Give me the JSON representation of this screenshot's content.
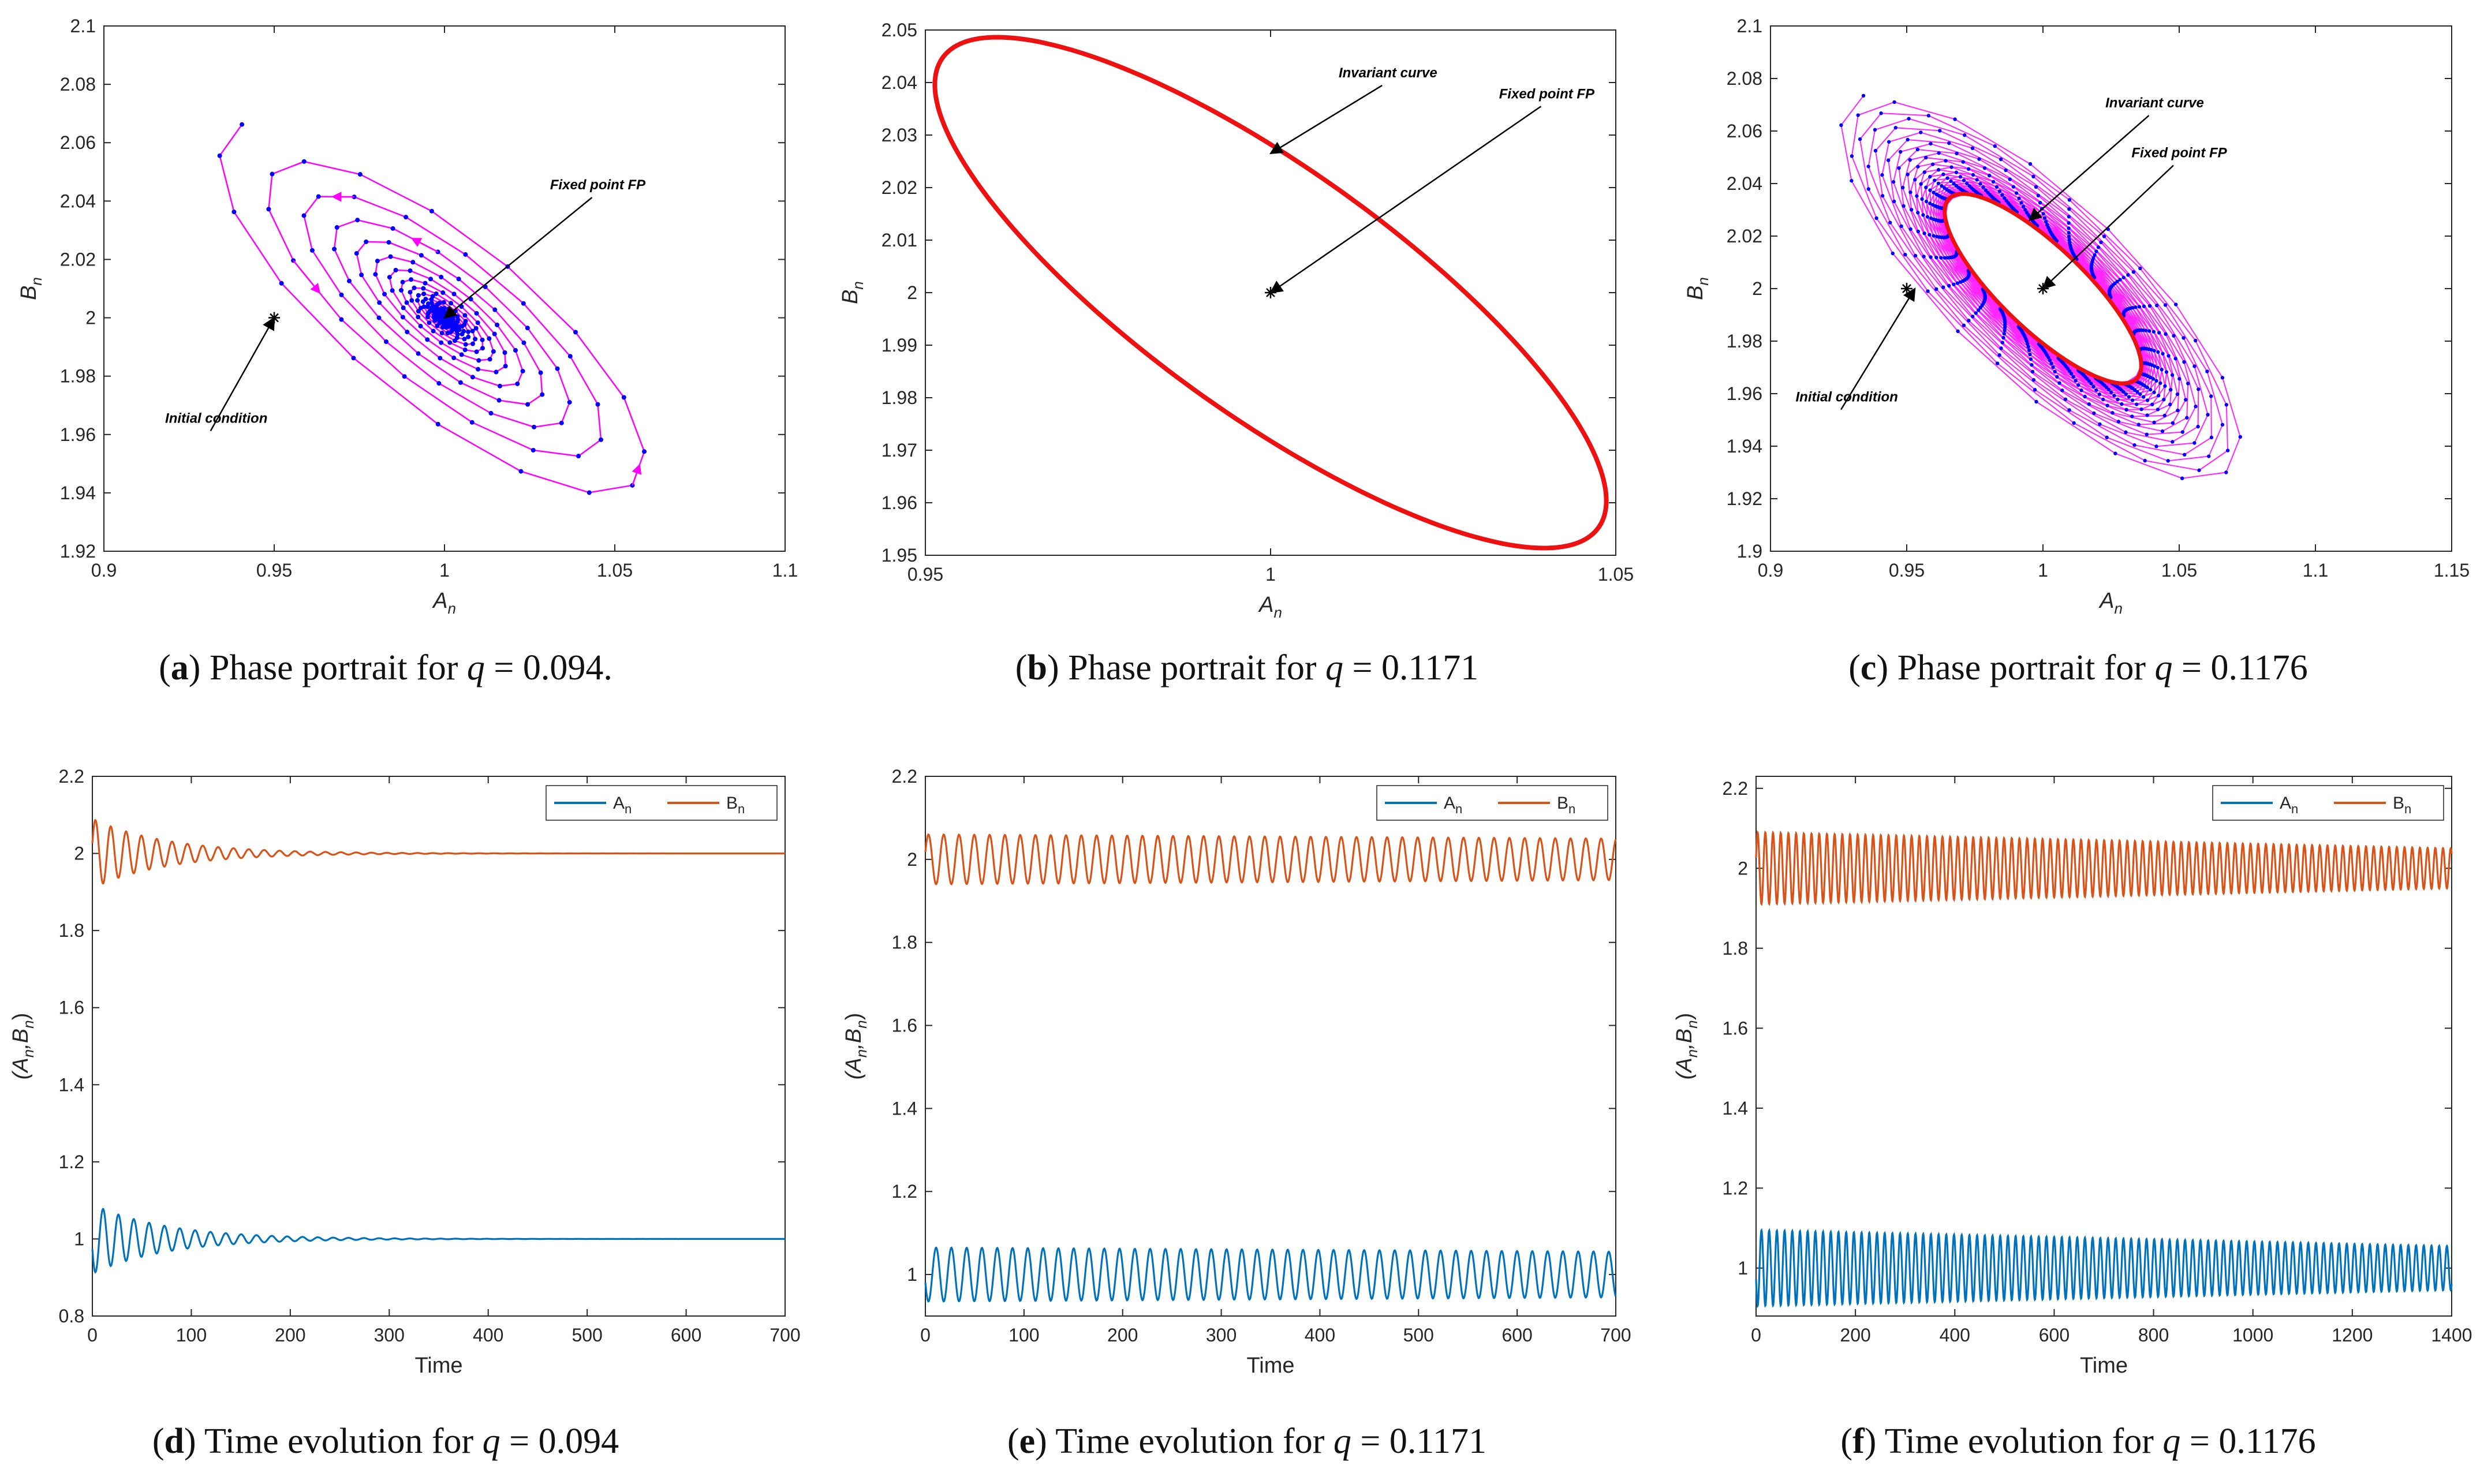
{
  "chart_data": [
    {
      "id": "a",
      "type": "scatter",
      "title": "",
      "xlabel": "A_n",
      "ylabel": "B_n",
      "xlim": [
        0.9,
        1.1
      ],
      "ylim": [
        1.92,
        2.1
      ],
      "xticks": [
        "0.9",
        "0.95",
        "1",
        "1.05",
        "1.1"
      ],
      "yticks": [
        "1.92",
        "1.94",
        "1.96",
        "1.98",
        "2",
        "2.02",
        "2.04",
        "2.06",
        "2.08",
        "2.1"
      ],
      "trajectory": {
        "type": "spiral-converging",
        "center": [
          1.0,
          2.0
        ],
        "start_radius": 0.09,
        "decay": 0.985,
        "iterations": 300,
        "color": "#ff00ff",
        "marker_color": "#0000ff"
      },
      "fixed_point": [
        1.0,
        2.0
      ],
      "initial_condition": [
        0.95,
        2.0
      ],
      "annotations": [
        {
          "text": "Fixed point FP",
          "at": [
            1.0,
            2.0
          ],
          "text_at": [
            1.045,
            2.044
          ]
        },
        {
          "text": "Initial condition",
          "at": [
            0.95,
            2.0
          ],
          "text_at": [
            0.933,
            1.964
          ]
        }
      ],
      "caption": {
        "label": "a",
        "text": "Phase portrait for ",
        "var": "q",
        "value": " = 0.094."
      }
    },
    {
      "id": "b",
      "type": "line",
      "title": "",
      "xlabel": "A_n",
      "ylabel": "B_n",
      "xlim": [
        0.95,
        1.05
      ],
      "ylim": [
        1.95,
        2.05
      ],
      "xticks": [
        "0.95",
        "1",
        "1.05"
      ],
      "yticks": [
        "1.95",
        "1.96",
        "1.97",
        "1.98",
        "1.99",
        "2",
        "2.01",
        "2.02",
        "2.03",
        "2.04",
        "2.05"
      ],
      "invariant_curve": {
        "center": [
          1.0,
          2.0
        ],
        "color": "#ee1111",
        "x_extent": [
          0.952,
          1.049
        ],
        "y_extent": [
          1.955,
          2.046
        ]
      },
      "fixed_point": [
        1.0,
        2.0
      ],
      "annotations": [
        {
          "text": "Invariant curve",
          "at": [
            1.0,
            2.0265
          ],
          "text_at": [
            1.017,
            2.041
          ]
        },
        {
          "text": "Fixed point FP",
          "at": [
            1.0,
            2.0
          ],
          "text_at": [
            1.04,
            2.037
          ]
        }
      ],
      "caption": {
        "label": "b",
        "text": "Phase portrait for ",
        "var": "q",
        "value": " = 0.1171"
      }
    },
    {
      "id": "c",
      "type": "scatter",
      "title": "",
      "xlabel": "A_n",
      "ylabel": "B_n",
      "xlim": [
        0.9,
        1.15
      ],
      "ylim": [
        1.9,
        2.1
      ],
      "xticks": [
        "0.9",
        "0.95",
        "1",
        "1.05",
        "1.1",
        "1.15"
      ],
      "yticks": [
        "1.9",
        "1.92",
        "1.94",
        "1.96",
        "1.98",
        "2",
        "2.02",
        "2.04",
        "2.06",
        "2.08",
        "2.1"
      ],
      "trajectory": {
        "type": "spiral-to-invariant-curve",
        "center": [
          1.0,
          2.0
        ],
        "start_radius": 0.095,
        "final_radius": 0.045,
        "iterations": 600,
        "color": "#ff00ff",
        "marker_color": "#0000ff"
      },
      "invariant_curve": {
        "center": [
          1.0,
          2.0
        ],
        "color": "#ee1111"
      },
      "fixed_point": [
        1.0,
        2.0
      ],
      "initial_condition": [
        0.95,
        2.0
      ],
      "annotations": [
        {
          "text": "Invariant curve",
          "at": [
            0.995,
            2.026
          ],
          "text_at": [
            1.041,
            2.069
          ]
        },
        {
          "text": "Fixed point FP",
          "at": [
            1.0,
            2.0
          ],
          "text_at": [
            1.05,
            2.05
          ]
        },
        {
          "text": "Initial condition",
          "at": [
            0.953,
            2.0
          ],
          "text_at": [
            0.928,
            1.957
          ]
        }
      ],
      "caption": {
        "label": "c",
        "text": "Phase portrait for ",
        "var": "q",
        "value": " = 0.1176"
      }
    },
    {
      "id": "d",
      "type": "line",
      "title": "",
      "xlabel": "Time",
      "ylabel": "(A_n,B_n)",
      "xlim": [
        0,
        700
      ],
      "ylim": [
        0.8,
        2.2
      ],
      "xticks": [
        "0",
        "100",
        "200",
        "300",
        "400",
        "500",
        "600",
        "700"
      ],
      "yticks": [
        "0.8",
        "1",
        "1.2",
        "1.4",
        "1.6",
        "1.8",
        "2",
        "2.2"
      ],
      "series": [
        {
          "name": "A",
          "sub": "n",
          "color": "#0072bd",
          "mean": 1.0,
          "amp0": 0.09,
          "amp_end": 0.0,
          "period": 15.5,
          "decay_tau": 75
        },
        {
          "name": "B",
          "sub": "n",
          "color": "#d95319",
          "mean": 2.0,
          "amp0": 0.09,
          "amp_end": 0.0,
          "period": 15.5,
          "decay_tau": 75
        }
      ],
      "legend": "top-right",
      "caption": {
        "label": "d",
        "text": "Time evolution for ",
        "var": "q",
        "value": " = 0.094"
      }
    },
    {
      "id": "e",
      "type": "line",
      "title": "",
      "xlabel": "Time",
      "ylabel": "(A_n,B_n)",
      "xlim": [
        0,
        700
      ],
      "ylim": [
        0.9,
        2.2
      ],
      "xticks": [
        "0",
        "100",
        "200",
        "300",
        "400",
        "500",
        "600",
        "700"
      ],
      "yticks": [
        "1",
        "1.2",
        "1.4",
        "1.6",
        "1.8",
        "2",
        "2.2"
      ],
      "series": [
        {
          "name": "A",
          "sub": "n",
          "color": "#0072bd",
          "mean": 1.0,
          "amp0": 0.065,
          "amp_end": 0.055,
          "period": 15.5
        },
        {
          "name": "B",
          "sub": "n",
          "color": "#d95319",
          "mean": 2.0,
          "amp0": 0.06,
          "amp_end": 0.05,
          "period": 15.5
        }
      ],
      "legend": "top-right",
      "caption": {
        "label": "e",
        "text": "Time evolution for ",
        "var": "q",
        "value": " = 0.1171"
      }
    },
    {
      "id": "f",
      "type": "line",
      "title": "",
      "xlabel": "Time",
      "ylabel": "(A_n,B_n)",
      "xlim": [
        0,
        1400
      ],
      "ylim": [
        0.88,
        2.23
      ],
      "xticks": [
        "0",
        "200",
        "400",
        "600",
        "800",
        "1000",
        "1200",
        "1400"
      ],
      "yticks": [
        "1",
        "1.2",
        "1.4",
        "1.6",
        "1.8",
        "2",
        "2.2"
      ],
      "series": [
        {
          "name": "A",
          "sub": "n",
          "color": "#0072bd",
          "mean": 1.0,
          "amp0": 0.095,
          "amp_end": 0.055,
          "period": 15.5
        },
        {
          "name": "B",
          "sub": "n",
          "color": "#d95319",
          "mean": 2.0,
          "amp0": 0.09,
          "amp_end": 0.05,
          "period": 15.5
        }
      ],
      "legend": "top-right",
      "caption": {
        "label": "f",
        "text": "Time evolution for ",
        "var": "q",
        "value": " = 0.1176"
      }
    }
  ]
}
